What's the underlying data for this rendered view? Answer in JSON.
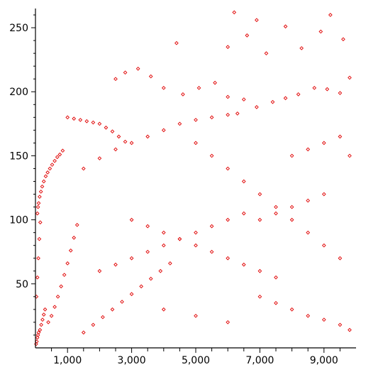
{
  "chart_data": {
    "type": "scatter",
    "title": "",
    "xlabel": "",
    "ylabel": "",
    "xlim": [
      0,
      10000
    ],
    "ylim": [
      0,
      265
    ],
    "x_ticks": [
      {
        "value": 1000,
        "label": "1,000"
      },
      {
        "value": 3000,
        "label": "3,000"
      },
      {
        "value": 5000,
        "label": "5,000"
      },
      {
        "value": 7000,
        "label": "7,000"
      },
      {
        "value": 9000,
        "label": "9,000"
      }
    ],
    "y_ticks": [
      {
        "value": 50,
        "label": "50"
      },
      {
        "value": 100,
        "label": "100"
      },
      {
        "value": 150,
        "label": "150"
      },
      {
        "value": 200,
        "label": "200"
      },
      {
        "value": 250,
        "label": "250"
      }
    ],
    "x_minor_ticks": [
      500,
      1500,
      2000,
      2500,
      3500,
      4000,
      4500,
      5500,
      6000,
      6500,
      7500,
      8000,
      8500,
      9500
    ],
    "marker": "diamond-outline",
    "color": "#e00000",
    "grid": false,
    "series": [
      {
        "points": [
          [
            20,
            3
          ],
          [
            40,
            5
          ],
          [
            60,
            8
          ],
          [
            80,
            10
          ],
          [
            100,
            12
          ],
          [
            140,
            14
          ],
          [
            180,
            18
          ],
          [
            220,
            22
          ],
          [
            260,
            26
          ],
          [
            300,
            30
          ],
          [
            30,
            40
          ],
          [
            60,
            55
          ],
          [
            90,
            70
          ],
          [
            120,
            85
          ],
          [
            150,
            98
          ],
          [
            60,
            105
          ],
          [
            80,
            110
          ],
          [
            100,
            113
          ],
          [
            130,
            118
          ],
          [
            170,
            122
          ],
          [
            210,
            126
          ],
          [
            260,
            130
          ],
          [
            320,
            134
          ],
          [
            380,
            137
          ],
          [
            450,
            140
          ],
          [
            520,
            143
          ],
          [
            600,
            146
          ],
          [
            680,
            149
          ],
          [
            760,
            151
          ],
          [
            850,
            154
          ],
          [
            400,
            20
          ],
          [
            500,
            25
          ],
          [
            600,
            32
          ],
          [
            700,
            40
          ],
          [
            800,
            48
          ],
          [
            900,
            57
          ],
          [
            1000,
            66
          ],
          [
            1100,
            76
          ],
          [
            1200,
            86
          ],
          [
            1300,
            96
          ],
          [
            1000,
            180
          ],
          [
            1200,
            179
          ],
          [
            1400,
            178
          ],
          [
            1600,
            177
          ],
          [
            1800,
            176
          ],
          [
            2000,
            175
          ],
          [
            2200,
            172
          ],
          [
            2400,
            169
          ],
          [
            2600,
            165
          ],
          [
            2800,
            161
          ],
          [
            1500,
            12
          ],
          [
            1800,
            18
          ],
          [
            2100,
            24
          ],
          [
            2400,
            30
          ],
          [
            2700,
            36
          ],
          [
            3000,
            42
          ],
          [
            3300,
            48
          ],
          [
            3600,
            54
          ],
          [
            3900,
            60
          ],
          [
            4200,
            66
          ],
          [
            2500,
            210
          ],
          [
            2800,
            215
          ],
          [
            3200,
            218
          ],
          [
            3600,
            212
          ],
          [
            4000,
            203
          ],
          [
            4600,
            198
          ],
          [
            5100,
            203
          ],
          [
            5600,
            207
          ],
          [
            6000,
            196
          ],
          [
            6500,
            194
          ],
          [
            4400,
            238
          ],
          [
            6000,
            235
          ],
          [
            6200,
            262
          ],
          [
            6600,
            244
          ],
          [
            6900,
            256
          ],
          [
            7200,
            230
          ],
          [
            7800,
            251
          ],
          [
            8300,
            234
          ],
          [
            8900,
            247
          ],
          [
            9200,
            260
          ],
          [
            9600,
            241
          ],
          [
            9800,
            211
          ],
          [
            9500,
            199
          ],
          [
            9100,
            202
          ],
          [
            8700,
            203
          ],
          [
            8200,
            198
          ],
          [
            7800,
            195
          ],
          [
            7400,
            192
          ],
          [
            6900,
            188
          ],
          [
            6300,
            183
          ],
          [
            5000,
            160
          ],
          [
            5500,
            150
          ],
          [
            6000,
            140
          ],
          [
            6500,
            130
          ],
          [
            7000,
            120
          ],
          [
            7500,
            110
          ],
          [
            8000,
            100
          ],
          [
            8500,
            90
          ],
          [
            9000,
            80
          ],
          [
            9500,
            70
          ],
          [
            3000,
            100
          ],
          [
            3500,
            95
          ],
          [
            4000,
            90
          ],
          [
            4500,
            85
          ],
          [
            5000,
            80
          ],
          [
            5500,
            75
          ],
          [
            6000,
            70
          ],
          [
            6500,
            65
          ],
          [
            7000,
            60
          ],
          [
            7500,
            55
          ],
          [
            2000,
            60
          ],
          [
            2500,
            65
          ],
          [
            3000,
            70
          ],
          [
            3500,
            75
          ],
          [
            4000,
            80
          ],
          [
            4500,
            85
          ],
          [
            5000,
            90
          ],
          [
            5500,
            95
          ],
          [
            6000,
            100
          ],
          [
            6500,
            105
          ],
          [
            7000,
            40
          ],
          [
            7500,
            35
          ],
          [
            8000,
            30
          ],
          [
            8500,
            25
          ],
          [
            9000,
            22
          ],
          [
            9500,
            18
          ],
          [
            9800,
            14
          ],
          [
            6000,
            20
          ],
          [
            5000,
            25
          ],
          [
            4000,
            30
          ],
          [
            1500,
            140
          ],
          [
            2000,
            148
          ],
          [
            2500,
            155
          ],
          [
            3000,
            160
          ],
          [
            3500,
            165
          ],
          [
            4000,
            170
          ],
          [
            4500,
            175
          ],
          [
            5000,
            178
          ],
          [
            5500,
            180
          ],
          [
            6000,
            182
          ],
          [
            8000,
            150
          ],
          [
            8500,
            155
          ],
          [
            9000,
            160
          ],
          [
            9500,
            165
          ],
          [
            9800,
            150
          ],
          [
            9000,
            120
          ],
          [
            8500,
            115
          ],
          [
            8000,
            110
          ],
          [
            7500,
            105
          ],
          [
            7000,
            100
          ]
        ]
      }
    ]
  }
}
